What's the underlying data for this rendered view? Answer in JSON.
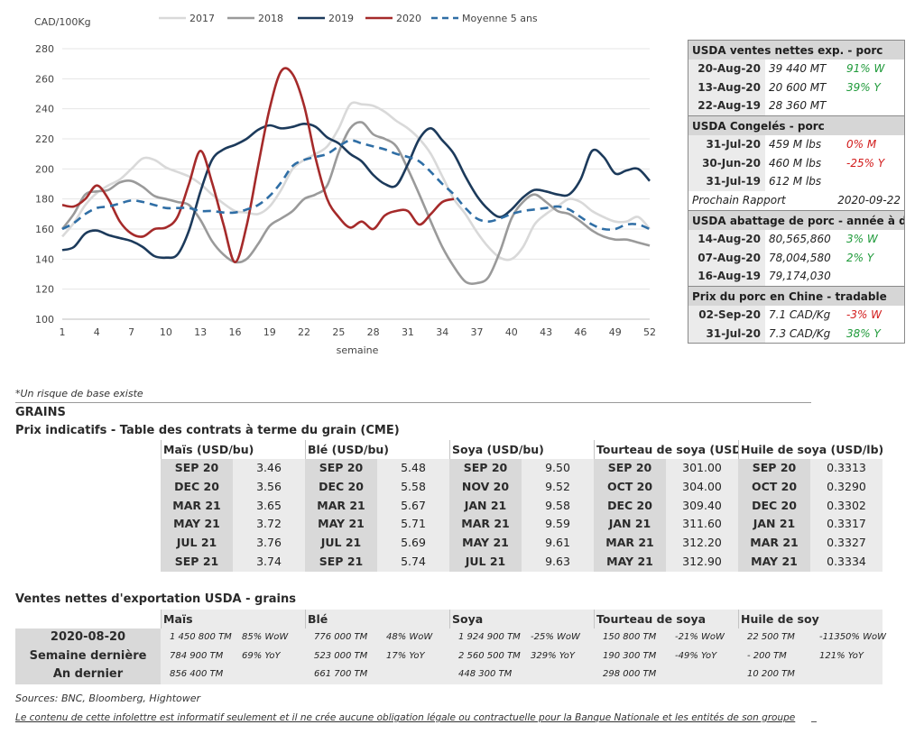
{
  "chart_data": {
    "type": "line",
    "ylabel": "CAD/100Kg",
    "xlabel": "semaine",
    "ylim": [
      100,
      280
    ],
    "xlim": [
      1,
      52
    ],
    "yticks": [
      "100",
      "120",
      "140",
      "160",
      "180",
      "200",
      "220",
      "240",
      "260",
      "280"
    ],
    "xticks": [
      "1",
      "4",
      "7",
      "10",
      "13",
      "16",
      "19",
      "22",
      "25",
      "28",
      "31",
      "34",
      "37",
      "40",
      "43",
      "46",
      "49",
      "52"
    ],
    "legend_position": "top",
    "series": [
      {
        "name": "2017",
        "color": "#d9d9d9",
        "dashed": false,
        "x": [
          1,
          2,
          3,
          4,
          5,
          6,
          7,
          8,
          9,
          10,
          11,
          12,
          13,
          14,
          15,
          16,
          17,
          18,
          19,
          20,
          21,
          22,
          23,
          24,
          25,
          26,
          27,
          28,
          29,
          30,
          31,
          32,
          33,
          34,
          35,
          36,
          37,
          38,
          39,
          40,
          41,
          42,
          43,
          44,
          45,
          46,
          47,
          48,
          49,
          50,
          51,
          52
        ],
        "y": [
          155,
          164,
          176,
          184,
          189,
          193,
          200,
          207,
          206,
          201,
          198,
          195,
          190,
          183,
          177,
          172,
          171,
          170,
          175,
          186,
          200,
          206,
          210,
          215,
          227,
          243,
          243,
          242,
          238,
          232,
          227,
          220,
          210,
          195,
          180,
          170,
          158,
          148,
          141,
          140,
          148,
          163,
          170,
          175,
          180,
          178,
          172,
          168,
          165,
          165,
          168,
          160
        ]
      },
      {
        "name": "2018",
        "color": "#9a9a9a",
        "dashed": false,
        "x": [
          1,
          2,
          3,
          4,
          5,
          6,
          7,
          8,
          9,
          10,
          11,
          12,
          13,
          14,
          15,
          16,
          17,
          18,
          19,
          20,
          21,
          22,
          23,
          24,
          25,
          26,
          27,
          28,
          29,
          30,
          31,
          32,
          33,
          34,
          35,
          36,
          37,
          38,
          39,
          40,
          41,
          42,
          43,
          44,
          45,
          46,
          47,
          48,
          49,
          50,
          51,
          52
        ],
        "y": [
          160,
          170,
          183,
          185,
          186,
          191,
          192,
          188,
          182,
          180,
          178,
          176,
          166,
          152,
          143,
          138,
          140,
          150,
          162,
          167,
          172,
          180,
          183,
          189,
          211,
          227,
          231,
          223,
          220,
          215,
          200,
          183,
          165,
          148,
          135,
          125,
          124,
          128,
          145,
          167,
          178,
          183,
          178,
          172,
          170,
          165,
          159,
          155,
          153,
          153,
          151,
          149
        ]
      },
      {
        "name": "2019",
        "color": "#1c3a5b",
        "dashed": false,
        "x": [
          1,
          2,
          3,
          4,
          5,
          6,
          7,
          8,
          9,
          10,
          11,
          12,
          13,
          14,
          15,
          16,
          17,
          18,
          19,
          20,
          21,
          22,
          23,
          24,
          25,
          26,
          27,
          28,
          29,
          30,
          31,
          32,
          33,
          34,
          35,
          36,
          37,
          38,
          39,
          40,
          41,
          42,
          43,
          44,
          45,
          46,
          47,
          48,
          49,
          50,
          51,
          52
        ],
        "y": [
          146,
          148,
          157,
          159,
          156,
          154,
          152,
          148,
          142,
          141,
          143,
          159,
          185,
          206,
          213,
          216,
          220,
          226,
          229,
          227,
          228,
          230,
          228,
          221,
          217,
          210,
          205,
          196,
          190,
          189,
          203,
          220,
          227,
          219,
          210,
          195,
          182,
          173,
          168,
          173,
          181,
          186,
          185,
          183,
          183,
          193,
          212,
          208,
          197,
          199,
          200,
          192
        ]
      },
      {
        "name": "2020",
        "color": "#a52a2a",
        "dashed": false,
        "x": [
          1,
          2,
          3,
          4,
          5,
          6,
          7,
          8,
          9,
          10,
          11,
          12,
          13,
          14,
          15,
          16,
          17,
          18,
          19,
          20,
          21,
          22,
          23,
          24,
          25,
          26,
          27,
          28,
          29,
          30,
          31,
          32,
          33,
          34,
          35
        ],
        "y": [
          176,
          175,
          180,
          189,
          180,
          165,
          157,
          155,
          160,
          161,
          168,
          190,
          212,
          191,
          163,
          138,
          162,
          202,
          240,
          265,
          263,
          242,
          207,
          180,
          168,
          161,
          165,
          160,
          169,
          172,
          172,
          163,
          170,
          178,
          180
        ]
      },
      {
        "name": "Moyenne 5 ans",
        "color": "#2f6ea5",
        "dashed": true,
        "x": [
          1,
          2,
          3,
          4,
          5,
          6,
          7,
          8,
          9,
          10,
          11,
          12,
          13,
          14,
          15,
          16,
          17,
          18,
          19,
          20,
          21,
          22,
          23,
          24,
          25,
          26,
          27,
          28,
          29,
          30,
          31,
          32,
          33,
          34,
          35,
          36,
          37,
          38,
          39,
          40,
          41,
          42,
          43,
          44,
          45,
          46,
          47,
          48,
          49,
          50,
          51,
          52
        ],
        "y": [
          160,
          164,
          170,
          174,
          175,
          177,
          179,
          178,
          176,
          174,
          174,
          174,
          172,
          172,
          171,
          171,
          173,
          176,
          182,
          191,
          202,
          206,
          208,
          210,
          215,
          219,
          217,
          215,
          213,
          210,
          208,
          205,
          198,
          190,
          183,
          174,
          167,
          165,
          167,
          170,
          172,
          173,
          174,
          175,
          173,
          168,
          163,
          160,
          160,
          163,
          163,
          160
        ]
      }
    ]
  },
  "side": {
    "sec1_title": "USDA ventes nettes exp. - porc",
    "sec1_rows": [
      {
        "date": "20-Aug-20",
        "value": "39 440  MT",
        "change": "91% W",
        "color": "green"
      },
      {
        "date": "13-Aug-20",
        "value": "20 600  MT",
        "change": "39% Y",
        "color": "green"
      },
      {
        "date": "22-Aug-19",
        "value": "28 360  MT",
        "change": "",
        "color": ""
      }
    ],
    "sec2_title": "USDA Congelés - porc",
    "sec2_rows": [
      {
        "date": "31-Jul-20",
        "value": "459 M lbs",
        "change": "0% M",
        "color": "red"
      },
      {
        "date": "30-Jun-20",
        "value": "460 M lbs",
        "change": "-25% Y",
        "color": "red"
      },
      {
        "date": "31-Jul-19",
        "value": "612 M lbs",
        "change": "",
        "color": ""
      }
    ],
    "prochain_label": "Prochain Rapport",
    "prochain_date": "2020-09-22",
    "sec3_title": "USDA abattage de porc - année à date",
    "sec3_rows": [
      {
        "date": "14-Aug-20",
        "value": "80,565,860",
        "change": "3% W",
        "color": "green"
      },
      {
        "date": "07-Aug-20",
        "value": "78,004,580",
        "change": "2% Y",
        "color": "green"
      },
      {
        "date": "16-Aug-19",
        "value": "79,174,030",
        "change": "",
        "color": ""
      }
    ],
    "sec4_title": "Prix du porc en Chine - tradable",
    "sec4_rows": [
      {
        "date": "02-Sep-20",
        "value": "7.1 CAD/Kg",
        "change": "-3% W",
        "color": "red"
      },
      {
        "date": "31-Jul-20",
        "value": "7.3 CAD/Kg",
        "change": "38% Y",
        "color": "green"
      }
    ]
  },
  "note": "*Un risque de base existe",
  "grains_title": "GRAINS",
  "futures_title": "Prix indicatifs - Table des contrats à terme du grain (CME)",
  "futures": [
    {
      "name": "Maïs (USD/bu)",
      "rows": [
        [
          "SEP 20",
          "3.46"
        ],
        [
          "DEC 20",
          "3.56"
        ],
        [
          "MAR 21",
          "3.65"
        ],
        [
          "MAY 21",
          "3.72"
        ],
        [
          "JUL 21",
          "3.76"
        ],
        [
          "SEP 21",
          "3.74"
        ]
      ]
    },
    {
      "name": "Blé (USD/bu)",
      "rows": [
        [
          "SEP 20",
          "5.48"
        ],
        [
          "DEC 20",
          "5.58"
        ],
        [
          "MAR 21",
          "5.67"
        ],
        [
          "MAY 21",
          "5.71"
        ],
        [
          "JUL 21",
          "5.69"
        ],
        [
          "SEP 21",
          "5.74"
        ]
      ]
    },
    {
      "name": "Soya (USD/bu)",
      "rows": [
        [
          "SEP 20",
          "9.50"
        ],
        [
          "NOV 20",
          "9.52"
        ],
        [
          "JAN 21",
          "9.58"
        ],
        [
          "MAR 21",
          "9.59"
        ],
        [
          "MAY 21",
          "9.61"
        ],
        [
          "JUL 21",
          "9.63"
        ]
      ]
    },
    {
      "name": "Tourteau de soya (USD/ST",
      "rows": [
        [
          "SEP 20",
          "301.00"
        ],
        [
          "OCT 20",
          "304.00"
        ],
        [
          "DEC 20",
          "309.40"
        ],
        [
          "JAN 21",
          "311.60"
        ],
        [
          "MAR 21",
          "312.20"
        ],
        [
          "MAY 21",
          "312.90"
        ]
      ]
    },
    {
      "name": "Huile de soya (USD/lb)",
      "rows": [
        [
          "SEP 20",
          "0.3313"
        ],
        [
          "OCT 20",
          "0.3290"
        ],
        [
          "DEC 20",
          "0.3302"
        ],
        [
          "JAN 21",
          "0.3317"
        ],
        [
          "MAR 21",
          "0.3327"
        ],
        [
          "MAY 21",
          "0.3334"
        ]
      ]
    }
  ],
  "export_title": "Ventes nettes d'exportation USDA - grains",
  "export_headers": [
    "Maïs",
    "Blé",
    "Soya",
    "Tourteau de soya",
    "Huile de soy"
  ],
  "export_rows": [
    {
      "label": "2020-08-20",
      "cells": [
        [
          "1 450 800 TM",
          "85% WoW",
          "green"
        ],
        [
          "776 000 TM",
          "48% WoW",
          "green"
        ],
        [
          "1 924 900 TM",
          "-25% WoW",
          "red"
        ],
        [
          "150 800 TM",
          "-21% WoW",
          "red"
        ],
        [
          "22 500 TM",
          "-11350% WoW",
          "red"
        ]
      ]
    },
    {
      "label": "Semaine dernière",
      "cells": [
        [
          "784 900 TM",
          "69% YoY",
          "green"
        ],
        [
          "523 000 TM",
          "17% YoY",
          "green"
        ],
        [
          "2 560 500 TM",
          "329% YoY",
          "green"
        ],
        [
          "190 300 TM",
          "-49% YoY",
          "red"
        ],
        [
          "-  200 TM",
          "121% YoY",
          "green"
        ]
      ]
    },
    {
      "label": "An dernier",
      "cells": [
        [
          "856 400 TM",
          "",
          ""
        ],
        [
          "661 700 TM",
          "",
          ""
        ],
        [
          "448 300 TM",
          "",
          ""
        ],
        [
          "298 000 TM",
          "",
          ""
        ],
        [
          "10 200 TM",
          "",
          ""
        ]
      ]
    }
  ],
  "sources": "Sources: BNC, Bloomberg, Hightower",
  "disclaimer": "Le contenu de cette infolettre est informatif seulement et il ne crée aucune obligation légale ou contractuelle pour la Banque Nationale et les entités de son groupe"
}
